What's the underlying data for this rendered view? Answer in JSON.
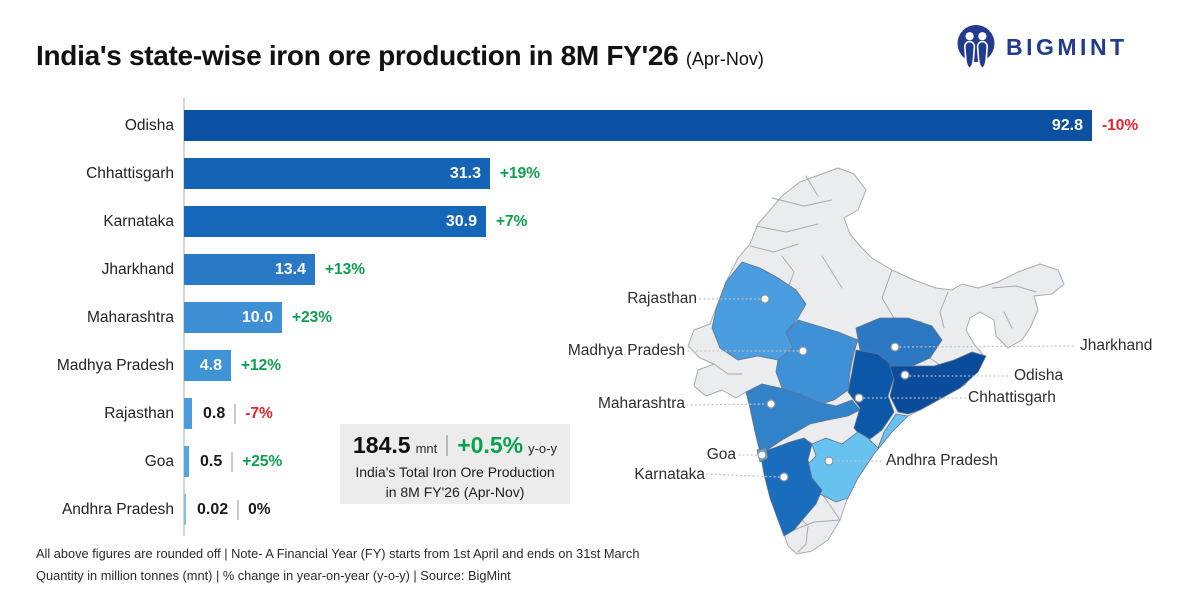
{
  "header": {
    "title": "India's state-wise iron ore production in 8M FY'26",
    "subtitle": "(Apr-Nov)",
    "logo_text": "BIGMINT",
    "brand_color": "#233B8E"
  },
  "chart_data": {
    "type": "bar",
    "orientation": "horizontal",
    "unit": "mnt",
    "title": "India's state-wise iron ore production in 8M FY'26 (Apr-Nov)",
    "categories": [
      "Odisha",
      "Chhattisgarh",
      "Karnataka",
      "Jharkhand",
      "Maharashtra",
      "Madhya Pradesh",
      "Rajasthan",
      "Goa",
      "Andhra Pradesh"
    ],
    "values": [
      92.8,
      31.3,
      30.9,
      13.4,
      10.0,
      4.8,
      0.8,
      0.5,
      0.02
    ],
    "xlim": [
      0,
      100
    ],
    "states": [
      {
        "name": "Odisha",
        "value": "92.8",
        "value_num": 92.8,
        "change_pct": "-10%",
        "trend": "down",
        "bar_color": "#0C51A1",
        "map_color": "#0A4B9B"
      },
      {
        "name": "Chhattisgarh",
        "value": "31.3",
        "value_num": 31.3,
        "change_pct": "+19%",
        "trend": "up",
        "bar_color": "#1463B5",
        "map_color": "#0D57A8"
      },
      {
        "name": "Karnataka",
        "value": "30.9",
        "value_num": 30.9,
        "change_pct": "+7%",
        "trend": "up",
        "bar_color": "#1566B8",
        "map_color": "#1A6CBD"
      },
      {
        "name": "Jharkhand",
        "value": "13.4",
        "value_num": 13.4,
        "change_pct": "+13%",
        "trend": "up",
        "bar_color": "#2A79C5",
        "map_color": "#2B77C2"
      },
      {
        "name": "Maharashtra",
        "value": "10.0",
        "value_num": 10.0,
        "change_pct": "+23%",
        "trend": "up",
        "bar_color": "#3E8FD3",
        "map_color": "#3282C9"
      },
      {
        "name": "Madhya Pradesh",
        "value": "4.8",
        "value_num": 4.8,
        "change_pct": "+12%",
        "trend": "up",
        "bar_color": "#3F93D7",
        "map_color": "#3E91D6"
      },
      {
        "name": "Rajasthan",
        "value": "0.8",
        "value_num": 0.8,
        "change_pct": "-7%",
        "trend": "down",
        "bar_color": "#4A9CDC",
        "map_color": "#4A9DDF"
      },
      {
        "name": "Goa",
        "value": "0.5",
        "value_num": 0.5,
        "change_pct": "+25%",
        "trend": "up",
        "bar_color": "#54A6E1",
        "map_color": "#54A7E2"
      },
      {
        "name": "Andhra Pradesh",
        "value": "0.02",
        "value_num": 0.02,
        "change_pct": "0%",
        "trend": "flat",
        "bar_color": "#7BC4EE",
        "map_color": "#68C2F0"
      }
    ]
  },
  "summary": {
    "total": "184.5",
    "unit": "mnt",
    "pct": "+0.5%",
    "yoy": "y-o-y",
    "line2": "India's Total Iron Ore Production",
    "line3": "in 8M FY'26 (Apr-Nov)"
  },
  "map": {
    "labels": {
      "rajasthan": "Rajasthan",
      "madhya_pradesh": "Madhya Pradesh",
      "maharashtra": "Maharashtra",
      "goa": "Goa",
      "karnataka": "Karnataka",
      "jharkhand": "Jharkhand",
      "odisha": "Odisha",
      "chhattisgarh": "Chhattisgarh",
      "andhra_pradesh": "Andhra Pradesh"
    }
  },
  "footer": {
    "line1": "All above figures are rounded off   |   Note- A Financial Year (FY) starts from 1st April and ends on 31st March",
    "line2": "Quantity in million tonnes (mnt)   |   % change in year-on-year (y-o-y)   |   Source: BigMint"
  },
  "colors": {
    "up": "#0AA14E",
    "down": "#E9222C",
    "flat": "#1A1A1A",
    "axis": "#D6D6D6",
    "map_gray": "#EBECEE"
  }
}
